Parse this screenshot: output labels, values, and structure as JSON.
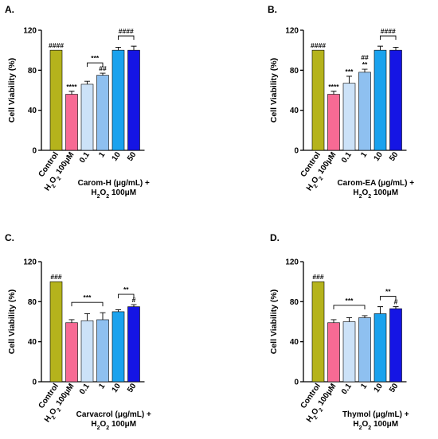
{
  "palette": {
    "control": "#b5b31c",
    "h2o2": "#f76a94",
    "c0_1": "#cce2f8",
    "c1": "#8ec0f0",
    "c10": "#1aa2ee",
    "c50": "#1515e4"
  },
  "chart_data": [
    {
      "type": "bar",
      "panel_label": "A.",
      "ylabel": "Cell Viability (%)",
      "ylim": [
        0,
        120
      ],
      "yticks": [
        "0",
        "40",
        "80",
        "120"
      ],
      "categories": [
        "Control",
        "H₂O₂ 100μM",
        "0.1",
        "1",
        "10",
        "50"
      ],
      "values": [
        100,
        56,
        66,
        75,
        100,
        100
      ],
      "errors": [
        0,
        3,
        3,
        2,
        3,
        4
      ],
      "labels_above": [
        "####",
        "****",
        "",
        "##",
        "",
        ""
      ],
      "brackets": [
        {
          "from": 2,
          "to": 3,
          "label": "***"
        },
        {
          "from": 4,
          "to": 5,
          "label": "####"
        }
      ],
      "treatment_label": [
        "Carom-H (μg/mL) +",
        "H₂O₂ 100μM"
      ]
    },
    {
      "type": "bar",
      "panel_label": "B.",
      "ylabel": "Cell Viability (%)",
      "ylim": [
        0,
        120
      ],
      "yticks": [
        "0",
        "40",
        "80",
        "120"
      ],
      "categories": [
        "Control",
        "H₂O₂ 100μM",
        "0.1",
        "1",
        "10",
        "50"
      ],
      "values": [
        100,
        56,
        67,
        78,
        100,
        100
      ],
      "errors": [
        0,
        3,
        7,
        3,
        4,
        3
      ],
      "labels_above": [
        "####",
        "****",
        "***",
        "##\n**",
        "",
        ""
      ],
      "brackets": [
        {
          "from": 4,
          "to": 5,
          "label": "####"
        }
      ],
      "treatment_label": [
        "Carom-EA (μg/mL) +",
        "H₂O₂ 100μM"
      ]
    },
    {
      "type": "bar",
      "panel_label": "C.",
      "ylabel": "Cell Viability (%)",
      "ylim": [
        0,
        120
      ],
      "yticks": [
        "0",
        "40",
        "80",
        "120"
      ],
      "categories": [
        "Control",
        "H₂O₂ 100μM",
        "0.1",
        "1",
        "10",
        "50"
      ],
      "values": [
        100,
        59,
        61,
        62,
        70,
        75
      ],
      "errors": [
        0,
        3,
        7,
        7,
        2,
        2
      ],
      "labels_above": [
        "###",
        "",
        "",
        "",
        "",
        "#"
      ],
      "brackets": [
        {
          "from": 1,
          "to": 3,
          "label": "***"
        },
        {
          "from": 4,
          "to": 5,
          "label": "**"
        }
      ],
      "treatment_label": [
        "Carvacrol (μg/mL) +",
        "H₂O₂ 100μM"
      ]
    },
    {
      "type": "bar",
      "panel_label": "D.",
      "ylabel": "Cell Viability (%)",
      "ylim": [
        0,
        120
      ],
      "yticks": [
        "0",
        "40",
        "80",
        "120"
      ],
      "categories": [
        "Control",
        "H₂O₂ 100μM",
        "0.1",
        "1",
        "10",
        "50"
      ],
      "values": [
        100,
        59,
        60,
        64,
        68,
        73
      ],
      "errors": [
        0,
        3,
        4,
        2,
        7,
        2
      ],
      "labels_above": [
        "###",
        "",
        "",
        "",
        "",
        "#"
      ],
      "brackets": [
        {
          "from": 1,
          "to": 3,
          "label": "***"
        },
        {
          "from": 4,
          "to": 5,
          "label": "**"
        }
      ],
      "treatment_label": [
        "Thymol (μg/mL) +",
        "H₂O₂ 100μM"
      ]
    }
  ]
}
